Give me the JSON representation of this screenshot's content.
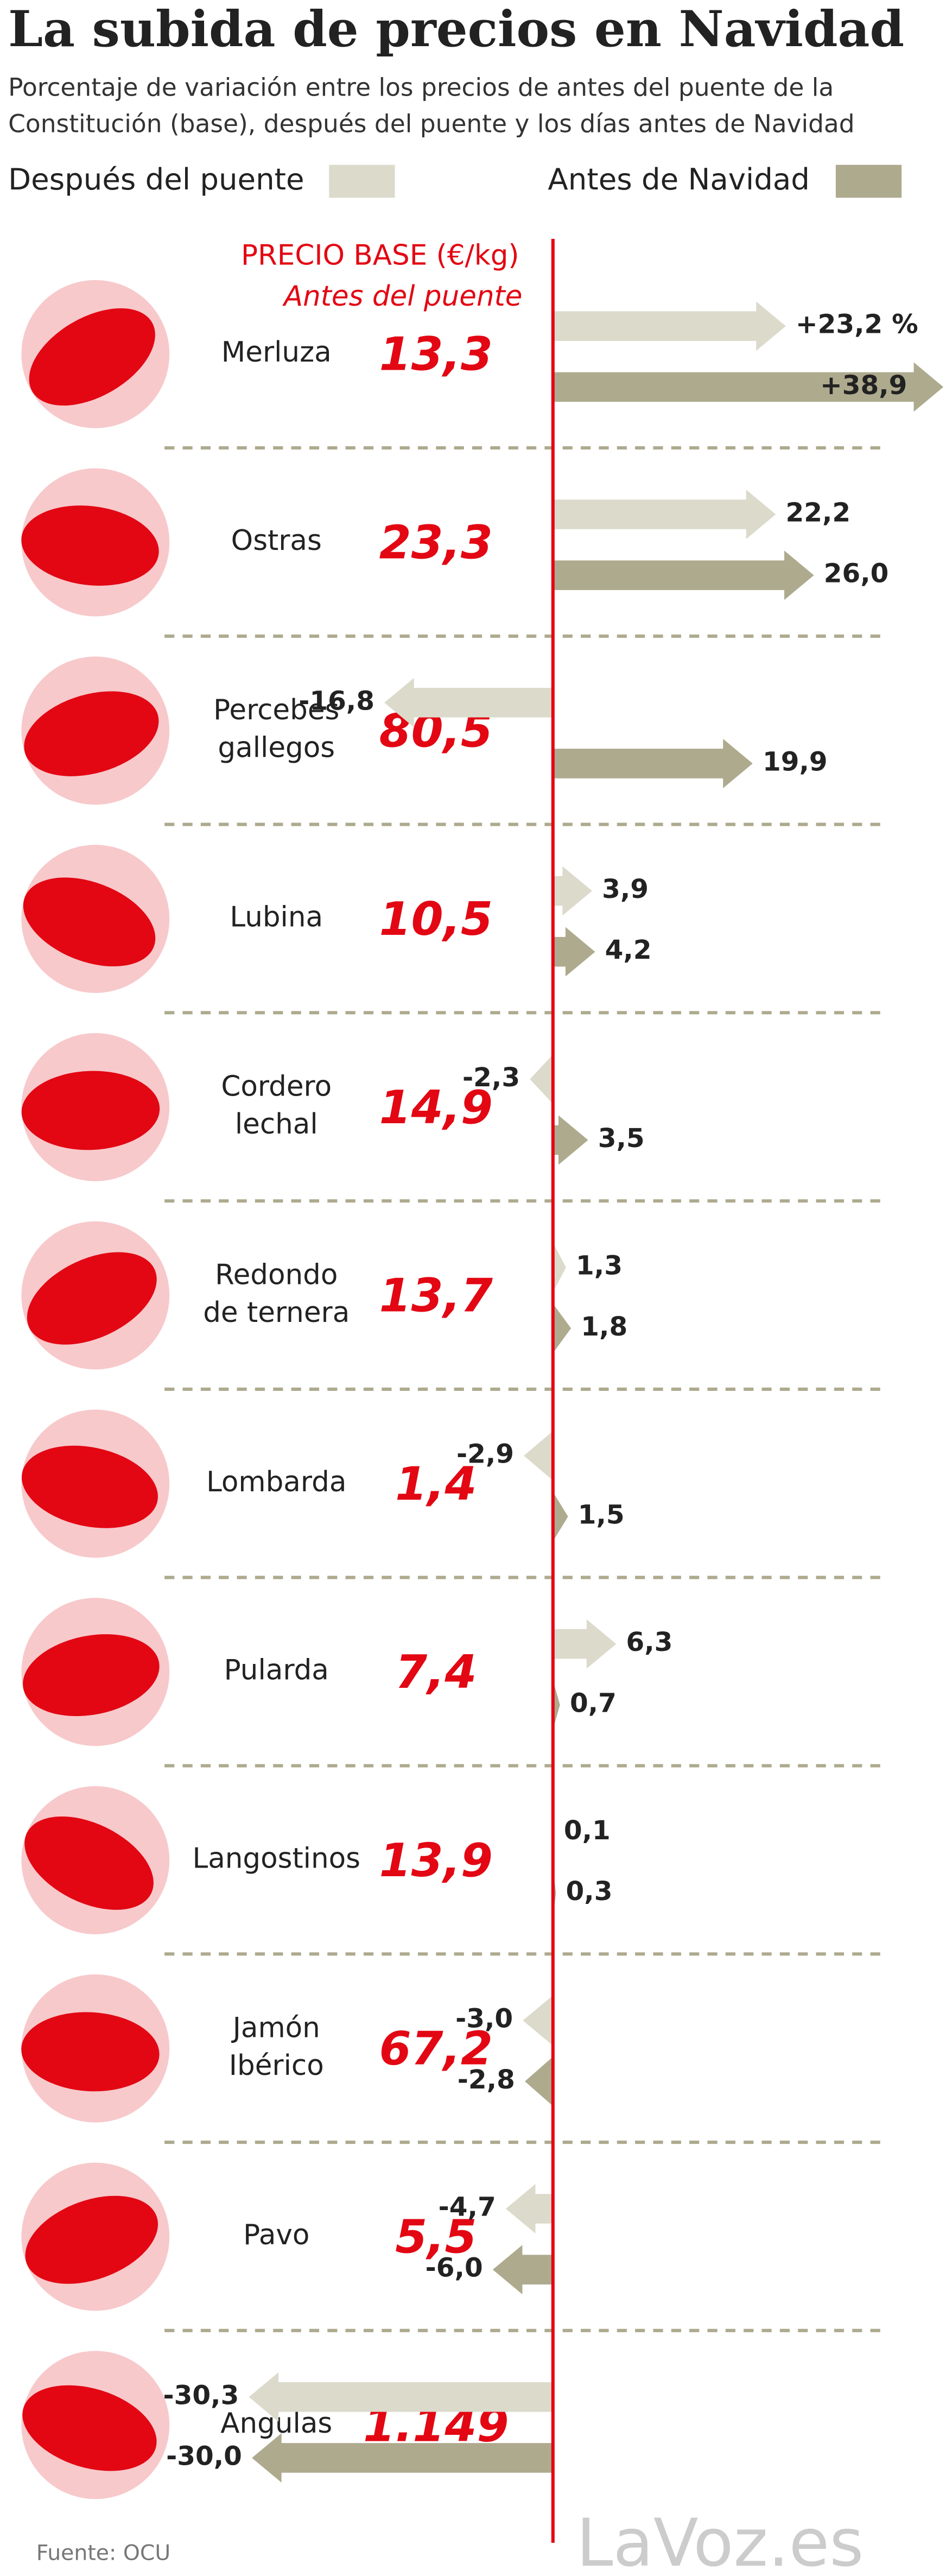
{
  "chart_data": {
    "type": "bar",
    "title": "La subida de precios en Navidad",
    "subtitle": [
      "Porcentaje de variación entre los precios de antes del puente de la",
      "Constitución (base), después del puente y los días antes de Navidad"
    ],
    "base_label": "PRECIO BASE (€/kg)",
    "base_sublabel": "Antes del puente",
    "categories": [
      [
        "Merluza"
      ],
      [
        "Ostras"
      ],
      [
        "Percebes",
        "gallegos"
      ],
      [
        "Lubina"
      ],
      [
        "Cordero",
        "lechal"
      ],
      [
        "Redondo",
        "de ternera"
      ],
      [
        "Lombarda"
      ],
      [
        "Pularda"
      ],
      [
        "Langostinos"
      ],
      [
        "Jamón",
        "Ibérico"
      ],
      [
        "Pavo"
      ],
      [
        "Angulas"
      ]
    ],
    "base_prices": {
      "values": [
        13.3,
        23.3,
        80.5,
        10.5,
        14.9,
        13.7,
        1.4,
        7.4,
        13.9,
        67.2,
        5.5,
        1149
      ],
      "value_labels": [
        "13,3",
        "23,3",
        "80,5",
        "10,5",
        "14,9",
        "13,7",
        "1,4",
        "7,4",
        "13,9",
        "67,2",
        "5,5",
        "1.149"
      ]
    },
    "series": [
      {
        "name": "Después del puente",
        "color": "#dcdacb",
        "values": [
          23.2,
          22.2,
          -16.8,
          3.9,
          -2.3,
          1.3,
          -2.9,
          6.3,
          0.1,
          -3.0,
          -4.7,
          -30.3
        ],
        "value_labels": [
          "+23,2 %",
          "22,2",
          "-16,8",
          "3,9",
          "-2,3",
          "1,3",
          "-2,9",
          "6,3",
          "0,1",
          "-3,0",
          "-4,7",
          "-30,3"
        ]
      },
      {
        "name": "Antes de Navidad",
        "color": "#aeaa8e",
        "values": [
          38.9,
          26.0,
          19.9,
          4.2,
          3.5,
          1.8,
          1.5,
          0.7,
          0.3,
          -2.8,
          -6.0,
          -30.0
        ],
        "value_labels": [
          "+38,9",
          "26,0",
          "19,9",
          "4,2",
          "3,5",
          "1,8",
          "1,5",
          "0,7",
          "0,3",
          "-2,8",
          "-6,0",
          "-30,0"
        ]
      }
    ],
    "xlim": [
      -31,
      39
    ],
    "zero_line_color": "#e30613",
    "source": "Fuente: OCU",
    "watermark": "LaVoz.es"
  }
}
